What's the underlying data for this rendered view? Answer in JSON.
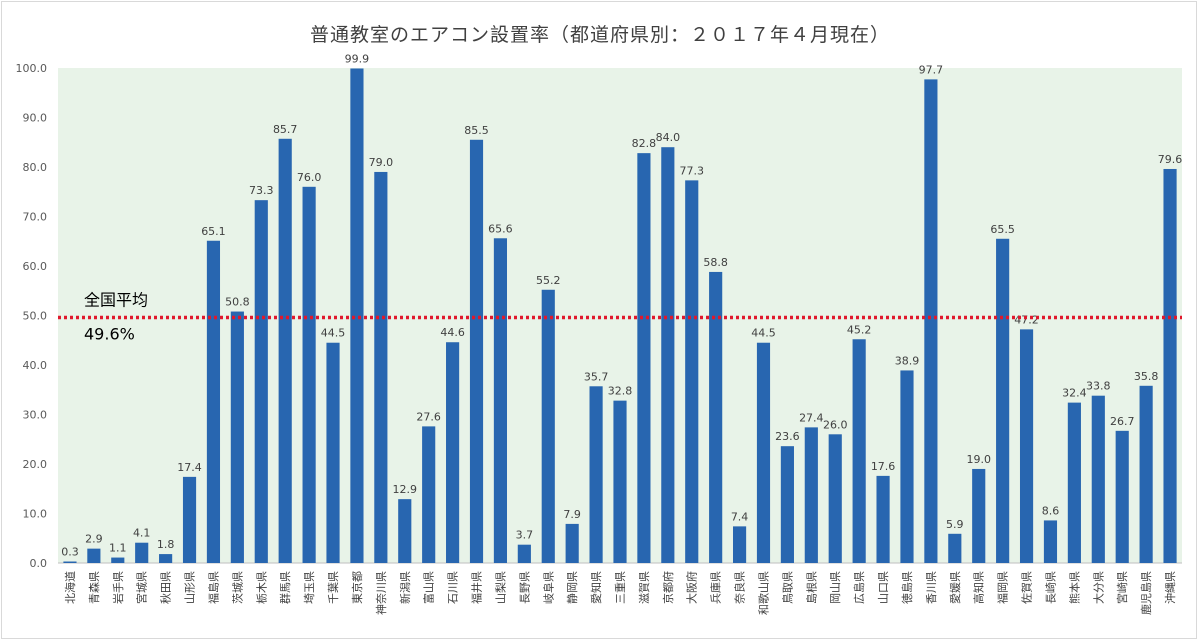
{
  "chart_data": {
    "type": "bar",
    "title": "普通教室のエアコン設置率（都道府県別：２０１７年４月現在）",
    "xlabel": "",
    "ylabel": "",
    "ylim": [
      0,
      100
    ],
    "yticks": [
      "0.0",
      "10.0",
      "20.0",
      "30.0",
      "40.0",
      "50.0",
      "60.0",
      "70.0",
      "80.0",
      "90.0",
      "100.0"
    ],
    "categories": [
      "北海道",
      "青森県",
      "岩手県",
      "宮城県",
      "秋田県",
      "山形県",
      "福島県",
      "茨城県",
      "栃木県",
      "群馬県",
      "埼玉県",
      "千葉県",
      "東京都",
      "神奈川県",
      "新潟県",
      "富山県",
      "石川県",
      "福井県",
      "山梨県",
      "長野県",
      "岐阜県",
      "静岡県",
      "愛知県",
      "三重県",
      "滋賀県",
      "京都府",
      "大阪府",
      "兵庫県",
      "奈良県",
      "和歌山県",
      "鳥取県",
      "島根県",
      "岡山県",
      "広島県",
      "山口県",
      "徳島県",
      "香川県",
      "愛媛県",
      "高知県",
      "福岡県",
      "佐賀県",
      "長崎県",
      "熊本県",
      "大分県",
      "宮崎県",
      "鹿児島県",
      "沖縄県"
    ],
    "values": [
      0.3,
      2.9,
      1.1,
      4.1,
      1.8,
      17.4,
      65.1,
      50.8,
      73.3,
      85.7,
      76.0,
      44.5,
      99.9,
      79.0,
      12.9,
      27.6,
      44.6,
      85.5,
      65.6,
      3.7,
      55.2,
      7.9,
      35.7,
      32.8,
      82.8,
      84.0,
      77.3,
      58.8,
      7.4,
      44.5,
      23.6,
      27.4,
      26.0,
      45.2,
      17.6,
      38.9,
      97.7,
      5.9,
      19.0,
      65.5,
      47.2,
      8.6,
      32.4,
      33.8,
      26.7,
      35.8,
      79.6
    ],
    "value_labels": [
      "0.3",
      "2.9",
      "1.1",
      "4.1",
      "1.8",
      "17.4",
      "65.1",
      "50.8",
      "73.3",
      "85.7",
      "76.0",
      "44.5",
      "99.9",
      "79.0",
      "12.9",
      "27.6",
      "44.6",
      "85.5",
      "65.6",
      "3.7",
      "55.2",
      "7.9",
      "35.7",
      "32.8",
      "82.8",
      "84.0",
      "77.3",
      "58.8",
      "7.4",
      "44.5",
      "23.6",
      "27.4",
      "26.0",
      "45.2",
      "17.6",
      "38.9",
      "97.7",
      "5.9",
      "19.0",
      "65.5",
      "47.2",
      "8.6",
      "32.4",
      "33.8",
      "26.7",
      "35.8",
      "79.6"
    ],
    "average": {
      "value": 49.6,
      "label": "全国平均",
      "value_label": "49.6%"
    },
    "colors": {
      "bar": "#2866b0",
      "average_line": "#e0182c",
      "plot_background": "#e8f3e8"
    }
  }
}
